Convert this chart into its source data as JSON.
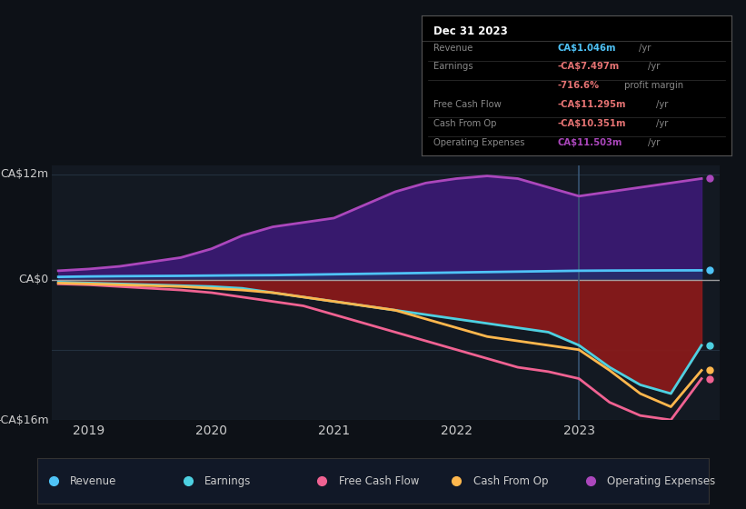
{
  "background_color": "#0d1117",
  "chart_bg": "#131922",
  "ylim": [
    -16,
    13
  ],
  "xlim_start": 2018.7,
  "xlim_end": 2024.15,
  "xticks": [
    2019,
    2020,
    2021,
    2022,
    2023
  ],
  "vline_x": 2023.0,
  "colors": {
    "revenue": "#4fc3f7",
    "earnings": "#4dd0e1",
    "free_cash_flow": "#f06292",
    "cash_from_op": "#ffb74d",
    "operating_expenses": "#ab47bc",
    "fill_pos": "#3d1a78",
    "fill_neg": "#8b1a1a",
    "fill_revenue": "#1a3a6b"
  },
  "series": {
    "x": [
      2018.75,
      2019.0,
      2019.25,
      2019.5,
      2019.75,
      2020.0,
      2020.25,
      2020.5,
      2020.75,
      2021.0,
      2021.25,
      2021.5,
      2021.75,
      2022.0,
      2022.25,
      2022.5,
      2022.75,
      2023.0,
      2023.25,
      2023.5,
      2023.75,
      2024.0
    ],
    "revenue": [
      0.3,
      0.35,
      0.38,
      0.4,
      0.42,
      0.45,
      0.48,
      0.5,
      0.55,
      0.6,
      0.65,
      0.7,
      0.75,
      0.8,
      0.85,
      0.9,
      0.95,
      1.0,
      1.02,
      1.03,
      1.04,
      1.046
    ],
    "operating_expenses": [
      1.0,
      1.2,
      1.5,
      2.0,
      2.5,
      3.5,
      5.0,
      6.0,
      6.5,
      7.0,
      8.5,
      10.0,
      11.0,
      11.5,
      11.8,
      11.5,
      10.5,
      9.5,
      10.0,
      10.5,
      11.0,
      11.503
    ],
    "earnings": [
      -0.3,
      -0.4,
      -0.5,
      -0.6,
      -0.7,
      -0.8,
      -1.0,
      -1.5,
      -2.0,
      -2.5,
      -3.0,
      -3.5,
      -4.0,
      -4.5,
      -5.0,
      -5.5,
      -6.0,
      -7.497,
      -10.0,
      -12.0,
      -13.0,
      -7.497
    ],
    "free_cash_flow": [
      -0.5,
      -0.6,
      -0.8,
      -1.0,
      -1.2,
      -1.5,
      -2.0,
      -2.5,
      -3.0,
      -4.0,
      -5.0,
      -6.0,
      -7.0,
      -8.0,
      -9.0,
      -10.0,
      -10.5,
      -11.295,
      -14.0,
      -15.5,
      -16.0,
      -11.295
    ],
    "cash_from_op": [
      -0.4,
      -0.5,
      -0.6,
      -0.7,
      -0.8,
      -1.0,
      -1.2,
      -1.5,
      -2.0,
      -2.5,
      -3.0,
      -3.5,
      -4.5,
      -5.5,
      -6.5,
      -7.0,
      -7.5,
      -8.0,
      -10.351,
      -13.0,
      -14.5,
      -10.351
    ]
  },
  "tooltip": {
    "title": "Dec 31 2023",
    "rows": [
      {
        "label": "Revenue",
        "value": "CA$1.046m",
        "unit": "/yr",
        "val_color": "#4fc3f7",
        "unit_color": "#888888"
      },
      {
        "label": "Earnings",
        "value": "-CA$7.497m",
        "unit": "/yr",
        "val_color": "#e57373",
        "unit_color": "#888888"
      },
      {
        "label": "",
        "value": "-716.6%",
        "unit": " profit margin",
        "val_color": "#e57373",
        "unit_color": "#888888"
      },
      {
        "label": "Free Cash Flow",
        "value": "-CA$11.295m",
        "unit": "/yr",
        "val_color": "#e57373",
        "unit_color": "#888888"
      },
      {
        "label": "Cash From Op",
        "value": "-CA$10.351m",
        "unit": "/yr",
        "val_color": "#e57373",
        "unit_color": "#888888"
      },
      {
        "label": "Operating Expenses",
        "value": "CA$11.503m",
        "unit": "/yr",
        "val_color": "#ab47bc",
        "unit_color": "#888888"
      }
    ]
  },
  "legend": [
    {
      "label": "Revenue",
      "color": "#4fc3f7"
    },
    {
      "label": "Earnings",
      "color": "#4dd0e1"
    },
    {
      "label": "Free Cash Flow",
      "color": "#f06292"
    },
    {
      "label": "Cash From Op",
      "color": "#ffb74d"
    },
    {
      "label": "Operating Expenses",
      "color": "#ab47bc"
    }
  ]
}
